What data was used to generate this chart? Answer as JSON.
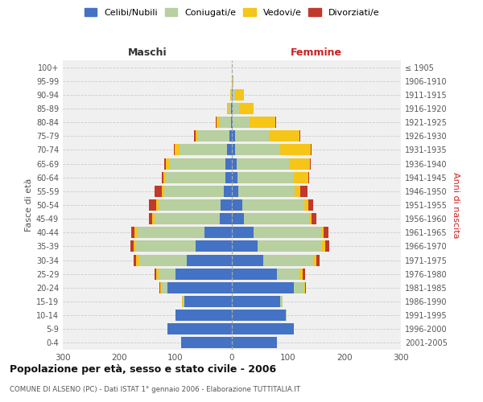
{
  "age_groups": [
    "0-4",
    "5-9",
    "10-14",
    "15-19",
    "20-24",
    "25-29",
    "30-34",
    "35-39",
    "40-44",
    "45-49",
    "50-54",
    "55-59",
    "60-64",
    "65-69",
    "70-74",
    "75-79",
    "80-84",
    "85-89",
    "90-94",
    "95-99",
    "100+"
  ],
  "birth_years": [
    "2001-2005",
    "1996-2000",
    "1991-1995",
    "1986-1990",
    "1981-1985",
    "1976-1980",
    "1971-1975",
    "1966-1970",
    "1961-1965",
    "1956-1960",
    "1951-1955",
    "1946-1950",
    "1941-1945",
    "1936-1940",
    "1931-1935",
    "1926-1930",
    "1921-1925",
    "1916-1920",
    "1911-1915",
    "1906-1910",
    "≤ 1905"
  ],
  "males": {
    "celibi": [
      90,
      115,
      100,
      85,
      115,
      100,
      80,
      65,
      48,
      22,
      20,
      15,
      12,
      12,
      8,
      5,
      2,
      1,
      0,
      0,
      0
    ],
    "coniugati": [
      0,
      0,
      0,
      2,
      10,
      30,
      85,
      105,
      120,
      115,
      110,
      105,
      105,
      100,
      85,
      55,
      20,
      5,
      2,
      0,
      0
    ],
    "vedovi": [
      0,
      0,
      0,
      2,
      2,
      5,
      5,
      5,
      5,
      5,
      5,
      5,
      5,
      5,
      8,
      5,
      5,
      2,
      1,
      0,
      0
    ],
    "divorziati": [
      0,
      0,
      0,
      0,
      2,
      2,
      5,
      5,
      5,
      5,
      12,
      12,
      3,
      3,
      2,
      2,
      1,
      0,
      0,
      0,
      0
    ]
  },
  "females": {
    "nubili": [
      80,
      110,
      95,
      85,
      110,
      80,
      55,
      45,
      38,
      22,
      18,
      12,
      10,
      8,
      5,
      5,
      2,
      1,
      1,
      0,
      0
    ],
    "coniugate": [
      0,
      0,
      2,
      5,
      18,
      40,
      90,
      115,
      120,
      115,
      110,
      100,
      100,
      95,
      80,
      60,
      30,
      12,
      5,
      1,
      0
    ],
    "vedove": [
      0,
      0,
      0,
      0,
      2,
      5,
      5,
      5,
      5,
      5,
      8,
      10,
      25,
      35,
      55,
      55,
      45,
      25,
      15,
      2,
      0
    ],
    "divorziate": [
      0,
      0,
      0,
      0,
      2,
      5,
      5,
      8,
      8,
      8,
      8,
      12,
      2,
      2,
      2,
      2,
      1,
      0,
      0,
      0,
      0
    ]
  },
  "colors": {
    "celibi": "#4472c4",
    "coniugati": "#b8cfa0",
    "vedovi": "#f5c518",
    "divorziati": "#c0392b"
  },
  "legend_labels": [
    "Celibi/Nubili",
    "Coniugati/e",
    "Vedovi/e",
    "Divorziati/e"
  ],
  "title": "Popolazione per età, sesso e stato civile - 2006",
  "subtitle": "COMUNE DI ALSENO (PC) - Dati ISTAT 1° gennaio 2006 - Elaborazione TUTTITALIA.IT",
  "xlabel_left": "Maschi",
  "xlabel_right": "Femmine",
  "ylabel_left": "Fasce di età",
  "ylabel_right": "Anni di nascita",
  "xlim": 300,
  "bg_color": "#ffffff",
  "plot_bg": "#f0f0f0"
}
